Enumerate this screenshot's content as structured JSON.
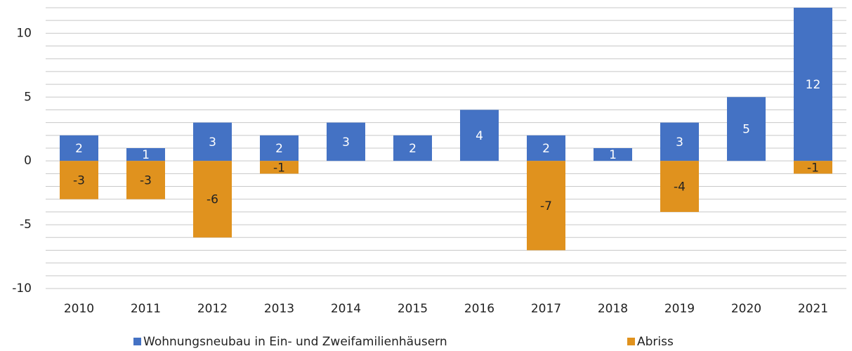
{
  "chart_data": {
    "type": "bar",
    "stacked": true,
    "categories": [
      "2010",
      "2011",
      "2012",
      "2013",
      "2014",
      "2015",
      "2016",
      "2017",
      "2018",
      "2019",
      "2020",
      "2021"
    ],
    "series": [
      {
        "name": "Wohnungsneubau in Ein- und Zweifamilienhäusern",
        "color": "#4472c4",
        "label_color": "#ffffff",
        "values": [
          2,
          1,
          3,
          2,
          3,
          2,
          4,
          2,
          1,
          3,
          5,
          12
        ]
      },
      {
        "name": "Abriss",
        "color": "#e0921e",
        "label_color": "#222222",
        "values": [
          -3,
          -3,
          -6,
          -1,
          null,
          null,
          null,
          -7,
          null,
          -4,
          null,
          -1
        ]
      }
    ],
    "ylim": [
      -10,
      12
    ],
    "yticks": [
      -10,
      -5,
      0,
      5,
      10
    ],
    "minor_yticks": [
      -10,
      -9,
      -8,
      -7,
      -6,
      -5,
      -4,
      -3,
      -2,
      -1,
      0,
      1,
      2,
      3,
      4,
      5,
      6,
      7,
      8,
      9,
      10,
      11,
      12
    ],
    "grid": true,
    "legend": "bottom"
  }
}
